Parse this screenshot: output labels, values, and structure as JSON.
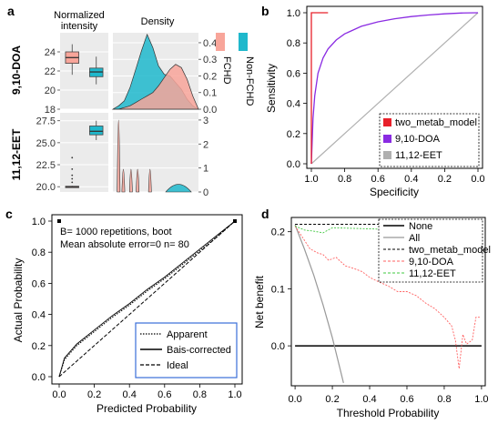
{
  "panels": {
    "a": {
      "letter": "a",
      "col1_title_line1": "Normalized",
      "col1_title_line2": "intensity",
      "col2_title": "Density",
      "row1_label": "9,10-DOA",
      "row2_label": "11,12-EET",
      "legend_items": [
        "FCHD",
        "Non-FCHD"
      ]
    },
    "b": {
      "letter": "b",
      "legend": [
        "two_metab_model",
        "9,10-DOA",
        "11,12-EET"
      ]
    },
    "c": {
      "letter": "c",
      "annotation_line1": "B= 1000 repetitions, boot",
      "annotation_line2": "Mean absolute error=0 n= 80",
      "legend": [
        "Apparent",
        "Bais-corrected",
        "Ideal"
      ]
    },
    "d": {
      "letter": "d",
      "legend": [
        "None",
        "All",
        "two_metab_model",
        "9,10-DOA",
        "11,12-EET"
      ]
    }
  },
  "colors": {
    "fchd": "#f8a59a",
    "non_fchd": "#1fb8cc",
    "panel_bg": "#ebebeb",
    "roc_two_metab": "#e8202a",
    "roc_910doa": "#8a2be2",
    "roc_1112eet": "#b0b0b0",
    "dca_910doa": "#ff6060",
    "dca_1112eet": "#40c840",
    "dca_all": "#999999",
    "legend_frame_c": "#3a6fd8"
  },
  "chart_data": [
    {
      "id": "a-box-910doa",
      "type": "box",
      "yticks": [
        "18",
        "20",
        "22",
        "24"
      ],
      "ylim": [
        18,
        26
      ],
      "series": [
        {
          "name": "FCHD",
          "q1": 22.8,
          "median": 23.4,
          "q3": 24.0,
          "whisker_low": 21.6,
          "whisker_high": 24.8
        },
        {
          "name": "Non-FCHD",
          "q1": 21.4,
          "median": 21.9,
          "q3": 22.3,
          "whisker_low": 20.6,
          "whisker_high": 23.5
        }
      ]
    },
    {
      "id": "a-density-910doa",
      "type": "area",
      "yticks": [
        "0.0",
        "0.1",
        "0.2",
        "0.3",
        "0.4"
      ],
      "ylim": [
        0,
        0.46
      ],
      "series": [
        {
          "name": "Non-FCHD",
          "values": [
            0,
            0.02,
            0.05,
            0.13,
            0.24,
            0.35,
            0.45,
            0.37,
            0.26,
            0.21,
            0.2,
            0.16,
            0.12,
            0.06,
            0.02,
            0
          ]
        },
        {
          "name": "FCHD",
          "values": [
            0,
            0.0,
            0.01,
            0.02,
            0.04,
            0.06,
            0.08,
            0.1,
            0.14,
            0.19,
            0.24,
            0.27,
            0.25,
            0.18,
            0.08,
            0
          ]
        }
      ]
    },
    {
      "id": "a-box-1112eet",
      "type": "box",
      "yticks": [
        "20.0",
        "22.5",
        "25.0",
        "27.5"
      ],
      "ylim": [
        19.4,
        28.4
      ],
      "series": [
        {
          "name": "FCHD",
          "q1": 19.95,
          "median": 20.0,
          "q3": 20.05,
          "whisker_low": 19.9,
          "whisker_high": 20.1,
          "outliers": [
            20.5,
            20.9,
            21.3,
            22.0,
            23.3
          ]
        },
        {
          "name": "Non-FCHD",
          "q1": 25.9,
          "median": 26.3,
          "q3": 26.9,
          "whisker_low": 25.3,
          "whisker_high": 27.5
        }
      ]
    },
    {
      "id": "a-density-1112eet",
      "type": "area",
      "yticks": [
        "0",
        "1",
        "2",
        "3"
      ],
      "ylim": [
        0,
        3.3
      ],
      "series": [
        {
          "name": "FCHD",
          "peaks": [
            {
              "x": 20.0,
              "height": 3.0
            },
            {
              "x": 20.5,
              "height": 0.95
            },
            {
              "x": 21.3,
              "height": 0.95
            },
            {
              "x": 22.0,
              "height": 0.95
            },
            {
              "x": 23.3,
              "height": 0.95
            }
          ]
        },
        {
          "name": "Non-FCHD",
          "peaks": [
            {
              "x": 26.3,
              "height": 0.32
            }
          ]
        }
      ]
    },
    {
      "id": "b-roc",
      "type": "line",
      "xlabel": "Specificity",
      "ylabel": "Sensitivity",
      "xticks": [
        "1.0",
        "0.8",
        "0.6",
        "0.4",
        "0.2",
        "0.0"
      ],
      "yticks": [
        "0.0",
        "0.2",
        "0.4",
        "0.6",
        "0.8",
        "1.0"
      ],
      "xlim": [
        1.0,
        0.0
      ],
      "ylim": [
        0,
        1
      ],
      "series": [
        {
          "name": "two_metab_model",
          "x": [
            1.0,
            1.0,
            0.9,
            0.9
          ],
          "y": [
            0.0,
            1.0,
            1.0,
            1.0
          ]
        },
        {
          "name": "9,10-DOA",
          "x": [
            1.0,
            0.99,
            0.98,
            0.96,
            0.93,
            0.9,
            0.85,
            0.8,
            0.7,
            0.6,
            0.5,
            0.4,
            0.3,
            0.2,
            0.1,
            0.0
          ],
          "y": [
            0.0,
            0.3,
            0.45,
            0.6,
            0.7,
            0.76,
            0.82,
            0.86,
            0.91,
            0.94,
            0.96,
            0.975,
            0.985,
            0.993,
            0.998,
            1.0
          ]
        },
        {
          "name": "11,12-EET",
          "x": [
            1.0,
            0.0
          ],
          "y": [
            0.0,
            1.0
          ]
        }
      ]
    },
    {
      "id": "c-calibration",
      "type": "line",
      "xlabel": "Predicted Probability",
      "ylabel": "Actual Probability",
      "xticks": [
        "0.0",
        "0.2",
        "0.4",
        "0.6",
        "0.8",
        "1.0"
      ],
      "yticks": [
        "0.0",
        "0.2",
        "0.4",
        "0.6",
        "0.8",
        "1.0"
      ],
      "xlim": [
        0,
        1
      ],
      "ylim": [
        0,
        1
      ],
      "series": [
        {
          "name": "Apparent",
          "x": [
            0.0,
            0.03,
            0.1,
            0.2,
            0.3,
            0.4,
            0.5,
            0.6,
            0.7,
            0.8,
            0.9,
            1.0
          ],
          "y": [
            0.0,
            0.11,
            0.2,
            0.29,
            0.38,
            0.46,
            0.55,
            0.63,
            0.72,
            0.81,
            0.9,
            1.0
          ]
        },
        {
          "name": "Bais-corrected",
          "x": [
            0.0,
            0.03,
            0.1,
            0.2,
            0.3,
            0.4,
            0.5,
            0.6,
            0.7,
            0.8,
            0.9,
            1.0
          ],
          "y": [
            0.0,
            0.12,
            0.21,
            0.3,
            0.39,
            0.47,
            0.56,
            0.64,
            0.73,
            0.82,
            0.91,
            1.0
          ]
        },
        {
          "name": "Ideal",
          "x": [
            0.0,
            1.0
          ],
          "y": [
            0.0,
            1.0
          ]
        }
      ]
    },
    {
      "id": "d-decision-curve",
      "type": "line",
      "xlabel": "Threshold Probability",
      "ylabel": "Net benefit",
      "xticks": [
        "0.0",
        "0.2",
        "0.4",
        "0.6",
        "0.8",
        "1.0"
      ],
      "yticks": [
        "0.0",
        "0.1",
        "0.2"
      ],
      "xlim": [
        -0.02,
        1.02
      ],
      "ylim": [
        -0.07,
        0.225
      ],
      "series": [
        {
          "name": "None",
          "x": [
            0.0,
            1.0
          ],
          "y": [
            0.0,
            0.0
          ]
        },
        {
          "name": "All",
          "x": [
            0.0,
            0.05,
            0.1,
            0.15,
            0.2,
            0.25,
            0.26
          ],
          "y": [
            0.212,
            0.17,
            0.124,
            0.072,
            0.014,
            -0.052,
            -0.065
          ]
        },
        {
          "name": "two_metab_model",
          "x": [
            0.0,
            1.0
          ],
          "y": [
            0.213,
            0.213
          ]
        },
        {
          "name": "9,10-DOA",
          "x": [
            0.0,
            0.04,
            0.08,
            0.12,
            0.15,
            0.18,
            0.22,
            0.27,
            0.32,
            0.36,
            0.4,
            0.45,
            0.5,
            0.55,
            0.6,
            0.65,
            0.7,
            0.75,
            0.8,
            0.84,
            0.86,
            0.88,
            0.9,
            0.92,
            0.95,
            0.97,
            0.99
          ],
          "y": [
            0.21,
            0.19,
            0.17,
            0.163,
            0.16,
            0.15,
            0.155,
            0.14,
            0.135,
            0.13,
            0.12,
            0.112,
            0.105,
            0.095,
            0.095,
            0.088,
            0.075,
            0.065,
            0.05,
            0.035,
            0.01,
            -0.04,
            0.02,
            0.003,
            0.01,
            0.05,
            0.05
          ]
        },
        {
          "name": "11,12-EET",
          "x": [
            0.0,
            0.05,
            0.1,
            0.15,
            0.2,
            0.4,
            0.6,
            0.8,
            0.88
          ],
          "y": [
            0.21,
            0.203,
            0.201,
            0.198,
            0.207,
            0.205,
            0.203,
            0.2,
            0.2
          ]
        }
      ]
    }
  ]
}
